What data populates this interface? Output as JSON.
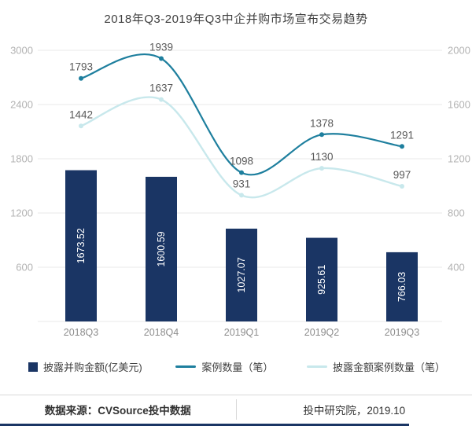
{
  "title": "2018年Q3-2019年Q3中企并购市场宣布交易趋势",
  "chart_data": {
    "type": "combo",
    "categories": [
      "2018Q3",
      "2018Q4",
      "2019Q1",
      "2019Q2",
      "2019Q3"
    ],
    "series": [
      {
        "name": "披露并购金额(亿美元)",
        "type": "bar",
        "axis": "left",
        "color": "#1a3564",
        "values": [
          1673.52,
          1600.59,
          1027.07,
          925.61,
          766.03
        ]
      },
      {
        "name": "案例数量（笔）",
        "type": "line",
        "axis": "right",
        "color": "#1e7f9e",
        "values": [
          1793,
          1939,
          1098,
          1378,
          1291
        ]
      },
      {
        "name": "披露金额案例数量（笔）",
        "type": "line",
        "axis": "right",
        "color": "#c8e8ec",
        "values": [
          1442,
          1637,
          931,
          1130,
          997
        ]
      }
    ],
    "left_axis": {
      "min": 0,
      "max": 3000,
      "ticks": [
        600,
        1200,
        1800,
        2400,
        3000
      ]
    },
    "right_axis": {
      "min": 0,
      "max": 2000,
      "ticks": [
        400,
        800,
        1200,
        1600,
        2000
      ]
    },
    "grid": true,
    "legend_position": "bottom",
    "title": "2018年Q3-2019年Q3中企并购市场宣布交易趋势"
  },
  "footer": {
    "source": "数据来源：CVSource投中数据",
    "org": "投中研究院，2019.10"
  },
  "colors": {
    "bar": "#1a3564",
    "line_cases": "#1e7f9e",
    "line_disclosed_cases": "#c8e8ec",
    "axis_text": "#b3b3b3",
    "grid_line": "#e8e8e8",
    "point_label": "#595959",
    "bottom_accent": "#1a3564"
  }
}
